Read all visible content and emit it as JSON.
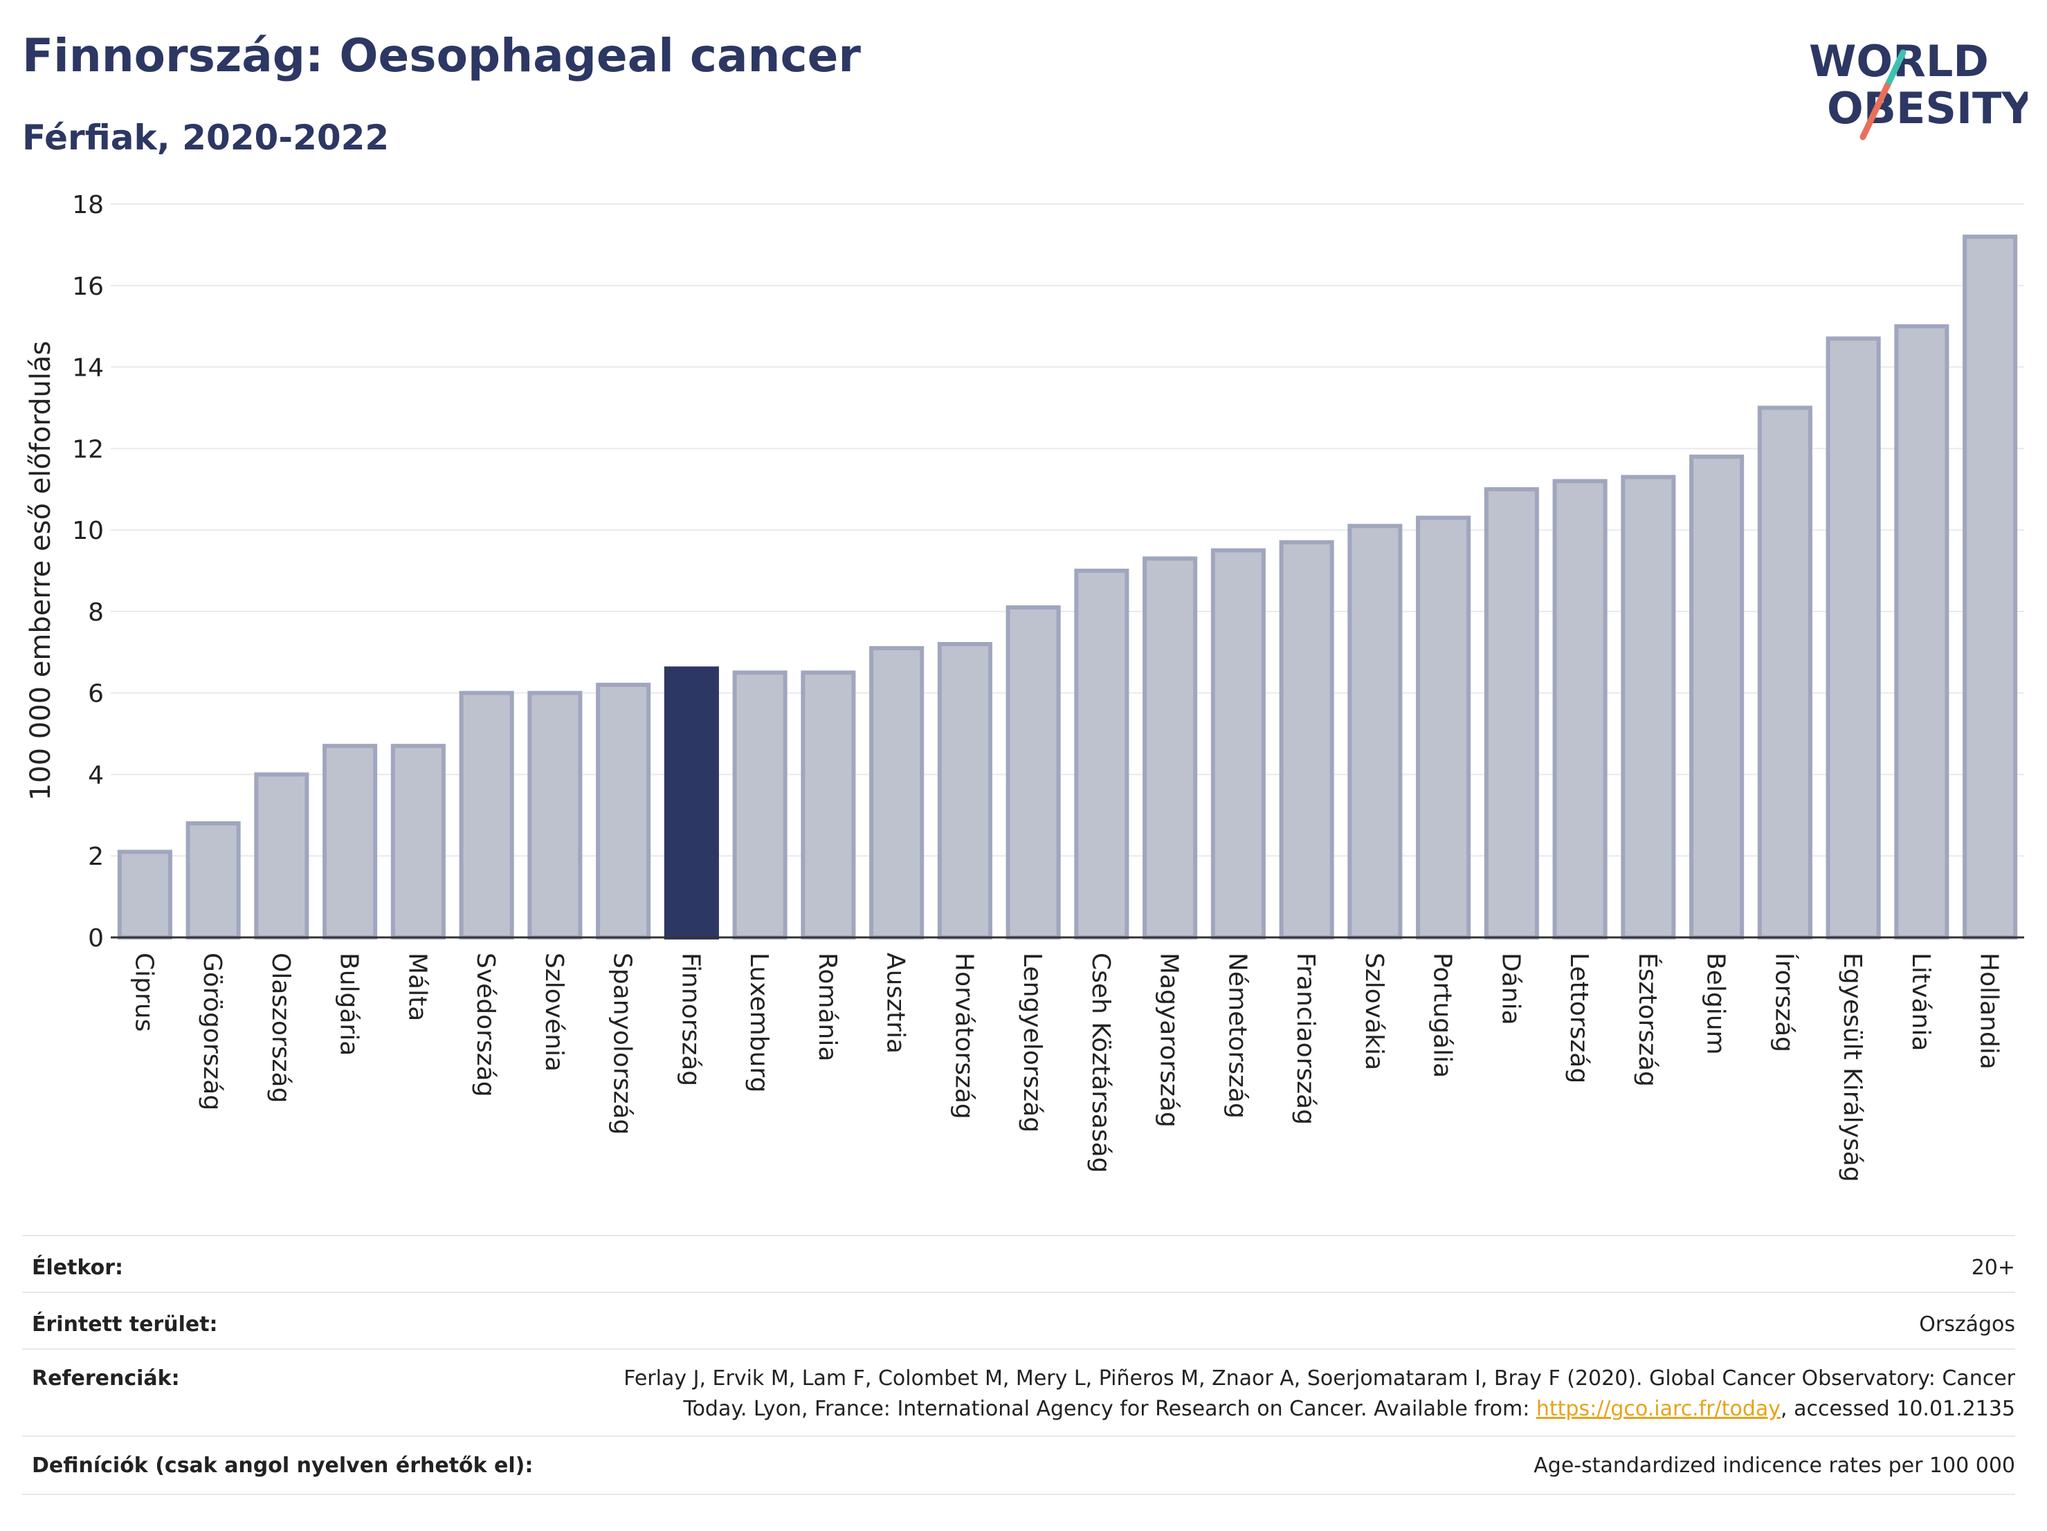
{
  "header": {
    "title": "Finnország: Oesophageal cancer",
    "subtitle": "Férfiak, 2020-2022"
  },
  "logo": {
    "line1": "WORLD",
    "line2": "OBESITY"
  },
  "chart_data": {
    "type": "bar",
    "ylabel": "100 000 emberre eső előfordulás",
    "xlabel": "",
    "ylim": [
      0,
      18
    ],
    "yticks": [
      0,
      2,
      4,
      6,
      8,
      10,
      12,
      14,
      16,
      18
    ],
    "grid": true,
    "categories": [
      "Ciprus",
      "Görögország",
      "Olaszország",
      "Bulgária",
      "Málta",
      "Svédország",
      "Szlovénia",
      "Spanyolország",
      "Finnország",
      "Luxemburg",
      "Románia",
      "Ausztria",
      "Horvátország",
      "Lengyelország",
      "Cseh Köztársaság",
      "Magyarország",
      "Németország",
      "Franciaország",
      "Szlovákia",
      "Portugália",
      "Dánia",
      "Lettország",
      "Észtország",
      "Belgium",
      "Írország",
      "Egyesült Királyság",
      "Litvánia",
      "Hollandia"
    ],
    "values": [
      2.1,
      2.8,
      4.0,
      4.7,
      4.7,
      6.0,
      6.0,
      6.2,
      6.6,
      6.5,
      6.5,
      7.1,
      7.2,
      8.1,
      9.0,
      9.3,
      9.5,
      9.7,
      10.1,
      10.3,
      11.0,
      11.2,
      11.3,
      11.8,
      13.0,
      14.7,
      15.0,
      17.2
    ],
    "highlight": "Finnország",
    "colors": {
      "bar": "#bec2cf",
      "bar_edge": "#a0a6bd",
      "highlight": "#2c3763",
      "axis": "#333333",
      "grid": "#e8e9ee"
    }
  },
  "info": {
    "age_label": "Életkor:",
    "age_value": "20+",
    "area_label": "Érintett terület:",
    "area_value": "Országos",
    "ref_label": "Referenciák:",
    "ref_line1": "Ferlay J, Ervik M, Lam F, Colombet M, Mery L, Piñeros M, Znaor A, Soerjomataram I, Bray F (2020). Global Cancer Observatory: Cancer",
    "ref_line2_pre": "Today. Lyon, France: International Agency for Research on Cancer. Available from: ",
    "ref_link": "https://gco.iarc.fr/today",
    "ref_line2_post": ", accessed 10.01.2135",
    "def_label": "Definíciók (csak angol nyelven érhetők el):",
    "def_value": "Age-standardized indicence rates per 100 000"
  }
}
